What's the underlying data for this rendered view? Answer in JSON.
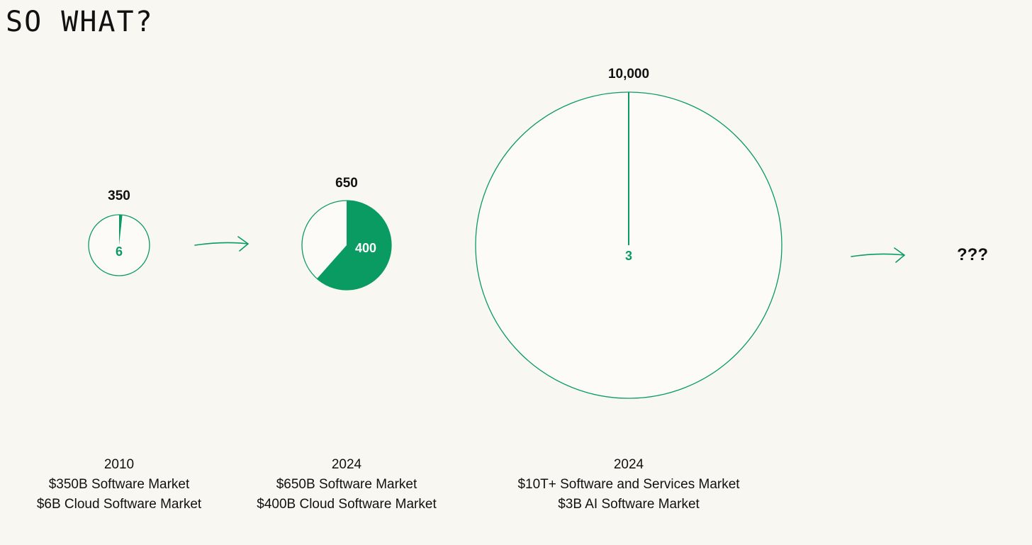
{
  "title": "SO WHAT?",
  "colors": {
    "accent": "#0a9b63",
    "background": "#f9f7f1",
    "circle_fill": "#fcfbf7",
    "text": "#111111"
  },
  "chart_data": {
    "type": "pie",
    "groups": [
      {
        "total": 350,
        "total_label": "350",
        "slice": 6,
        "slice_label": "6",
        "caption": [
          "2010",
          "$350B Software Market",
          "$6B Cloud Software Market"
        ]
      },
      {
        "total": 650,
        "total_label": "650",
        "slice": 400,
        "slice_label": "400",
        "caption": [
          "2024",
          "$650B Software Market",
          "$400B Cloud Software Market"
        ]
      },
      {
        "total": 10000,
        "total_label": "10,000",
        "slice": 3,
        "slice_label": "3",
        "caption": [
          "2024",
          "$10T+ Software and Services Market",
          "$3B AI Software Market"
        ]
      }
    ],
    "next_label": "???"
  }
}
